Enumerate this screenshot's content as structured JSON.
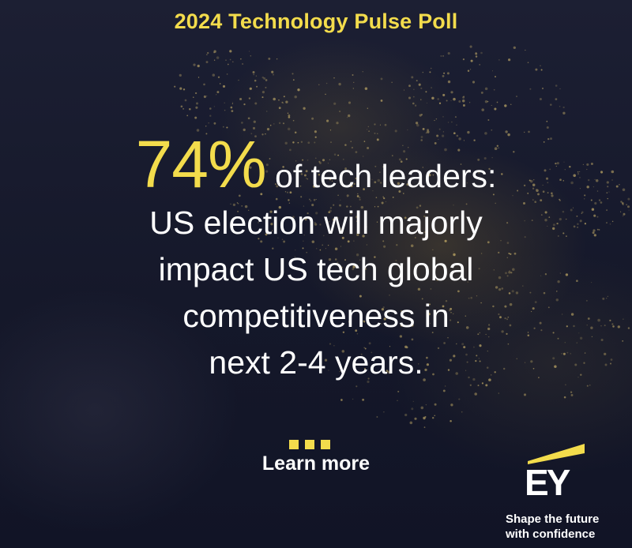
{
  "poll_title": "2024 Technology Pulse Poll",
  "headline": {
    "stat": "74%",
    "line1_rest": " of tech leaders:",
    "line2": "US election will majorly",
    "line3": "impact US tech global",
    "line4": "competitiveness in",
    "line5": "next 2-4 years."
  },
  "cta": {
    "label": "Learn more"
  },
  "brand": {
    "logo_text": "EY",
    "tagline_line1": "Shape the future",
    "tagline_line2": "with confidence"
  },
  "colors": {
    "accent": "#f3dc4c",
    "background": "#15182a",
    "text": "#ffffff"
  }
}
